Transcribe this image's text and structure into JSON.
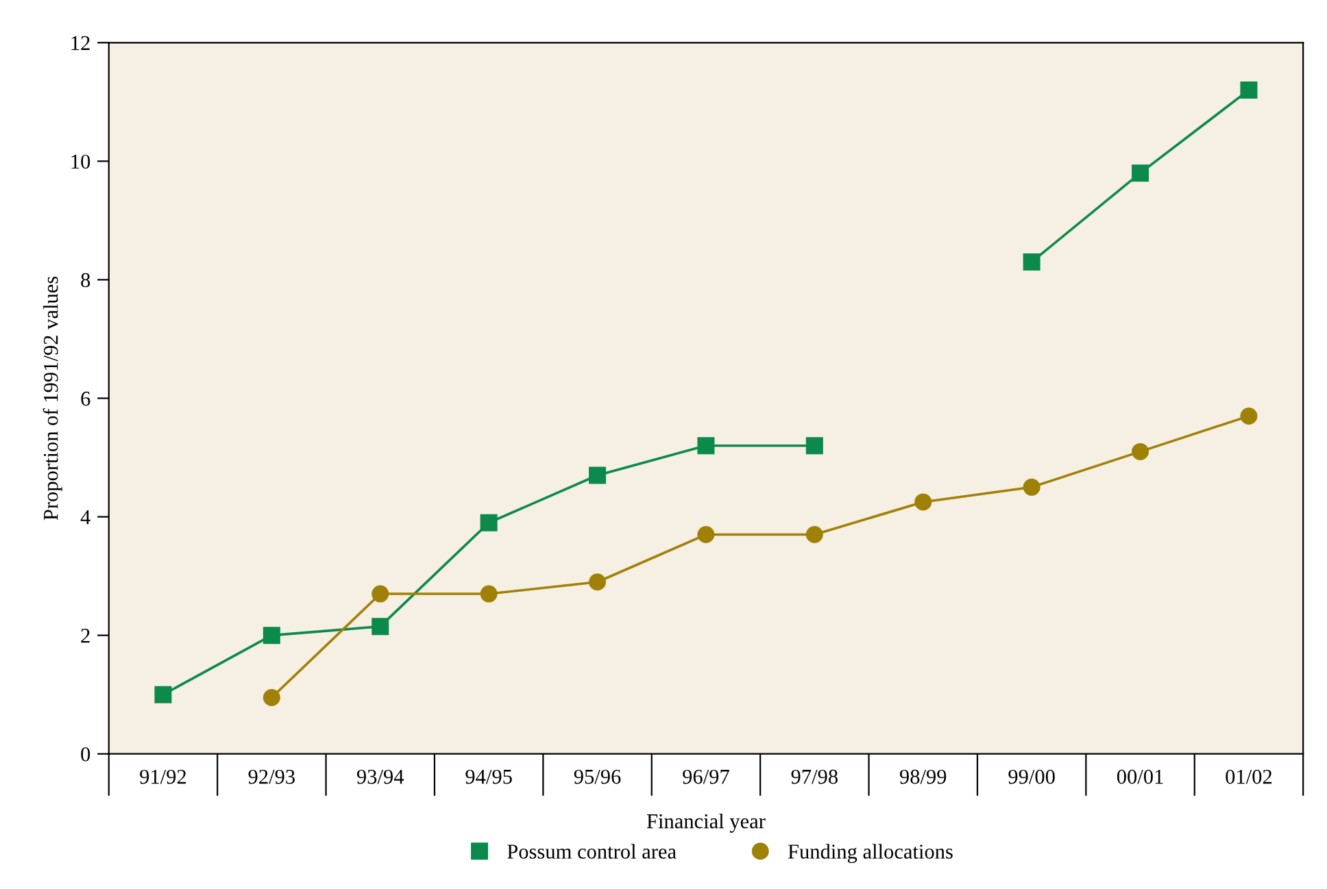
{
  "chart_data": {
    "type": "line",
    "xlabel": "Financial year",
    "ylabel": "Proportion of 1991/92 values",
    "categories": [
      "91/92",
      "92/93",
      "93/94",
      "94/95",
      "95/96",
      "96/97",
      "97/98",
      "98/99",
      "99/00",
      "00/01",
      "01/02"
    ],
    "series": [
      {
        "name": "Possum control area",
        "color": "#0b8a4c",
        "marker": "square",
        "values": [
          1.0,
          2.0,
          2.15,
          3.9,
          4.7,
          5.2,
          5.2,
          null,
          8.3,
          9.8,
          11.2
        ]
      },
      {
        "name": "Funding allocations",
        "color": "#a08108",
        "marker": "circle",
        "values": [
          null,
          0.95,
          2.7,
          2.7,
          2.9,
          3.7,
          3.7,
          4.25,
          4.5,
          5.1,
          5.7
        ]
      }
    ],
    "ylim": [
      0,
      12
    ],
    "yticks": [
      0,
      2,
      4,
      6,
      8,
      10,
      12
    ],
    "grid": false,
    "legend": "bottom",
    "line_style": "solid"
  }
}
